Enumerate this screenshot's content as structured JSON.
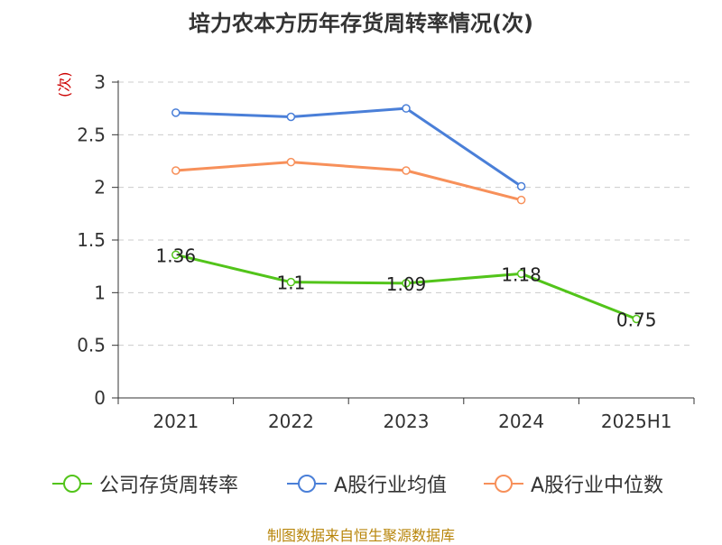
{
  "title": "培力农本方历年存货周转率情况(次)",
  "y_unit": "(次)",
  "source": "制图数据来自恒生聚源数据库",
  "chart_data": {
    "type": "line",
    "title": "培力农本方历年存货周转率情况(次)",
    "xlabel": "",
    "ylabel": "(次)",
    "categories": [
      "2021",
      "2022",
      "2023",
      "2024",
      "2025H1"
    ],
    "ylim": [
      0,
      3
    ],
    "yticks": [
      "0",
      "0.5",
      "1",
      "1.5",
      "2",
      "2.5",
      "3"
    ],
    "grid": true,
    "legend_position": "bottom",
    "series": [
      {
        "name": "公司存货周转率",
        "color": "#52c41a",
        "values": [
          1.36,
          1.1,
          1.09,
          1.18,
          0.75
        ],
        "labels": [
          "1.36",
          "1.1",
          "1.09",
          "1.18",
          "0.75"
        ]
      },
      {
        "name": "A股行业均值",
        "color": "#4a7fd8",
        "values": [
          2.71,
          2.67,
          2.75,
          2.01,
          null
        ]
      },
      {
        "name": "A股行业中位数",
        "color": "#f7905a",
        "values": [
          2.16,
          2.24,
          2.16,
          1.88,
          null
        ]
      }
    ]
  }
}
